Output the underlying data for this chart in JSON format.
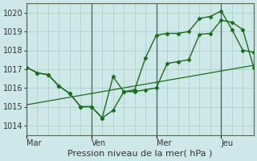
{
  "background_color": "#cde8e8",
  "grid_color": "#aaccbb",
  "line_color": "#1a6b1a",
  "xlabel": "Pression niveau de la mer( hPa )",
  "yticks": [
    1014,
    1015,
    1016,
    1017,
    1018,
    1019,
    1020
  ],
  "ylim": [
    1013.5,
    1020.5
  ],
  "xtick_labels": [
    "Mar",
    "Ven",
    "Mer",
    "Jeu"
  ],
  "xtick_positions": [
    0,
    3,
    6,
    9
  ],
  "xlim": [
    0,
    10.5
  ],
  "series": [
    {
      "x": [
        0,
        0.5,
        1.0,
        1.5,
        2.0,
        2.5,
        3.0,
        3.5,
        4.0,
        4.5,
        5.0,
        5.5,
        6.0,
        6.5,
        7.0,
        7.5,
        8.0,
        8.5,
        9.0,
        9.5,
        10.0,
        10.5
      ],
      "y": [
        1017.1,
        1016.8,
        1016.7,
        1016.1,
        1015.7,
        1015.0,
        1015.0,
        1014.4,
        1014.8,
        1015.8,
        1015.8,
        1015.9,
        1016.0,
        1017.3,
        1017.4,
        1017.5,
        1018.85,
        1018.9,
        1019.6,
        1019.5,
        1019.1,
        1017.1
      ],
      "marker": "D",
      "markersize": 2.5,
      "linewidth": 1.0
    },
    {
      "x": [
        0,
        0.5,
        1.0,
        1.5,
        2.0,
        2.5,
        3.0,
        3.5,
        4.0,
        4.5,
        5.0,
        5.5,
        6.0,
        6.5,
        7.0,
        7.5,
        8.0,
        8.5,
        9.0,
        9.5,
        10.0,
        10.5
      ],
      "y": [
        1017.1,
        1016.8,
        1016.7,
        1016.1,
        1015.7,
        1015.0,
        1015.0,
        1014.4,
        1016.6,
        1015.8,
        1015.9,
        1017.6,
        1018.8,
        1018.9,
        1018.9,
        1019.0,
        1019.7,
        1019.8,
        1020.1,
        1019.1,
        1018.0,
        1017.9
      ],
      "marker": "D",
      "markersize": 2.5,
      "linewidth": 1.0
    },
    {
      "x": [
        0,
        10.5
      ],
      "y": [
        1015.1,
        1017.2
      ],
      "marker": null,
      "markersize": 0,
      "linewidth": 0.9
    }
  ],
  "vlines": [
    0,
    3,
    6,
    9
  ],
  "tick_color": "#333333",
  "tick_fontsize": 7.0,
  "xlabel_fontsize": 8.0
}
